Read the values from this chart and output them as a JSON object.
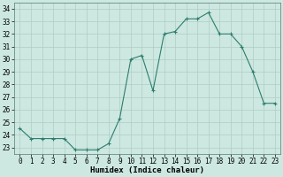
{
  "x": [
    0,
    1,
    2,
    3,
    4,
    5,
    6,
    7,
    8,
    9,
    10,
    11,
    12,
    13,
    14,
    15,
    16,
    17,
    18,
    19,
    20,
    21,
    22,
    23
  ],
  "y": [
    24.5,
    23.7,
    23.7,
    23.7,
    23.7,
    22.8,
    22.8,
    22.8,
    23.3,
    25.3,
    30.0,
    30.3,
    27.5,
    32.0,
    32.2,
    33.2,
    33.2,
    33.7,
    32.0,
    32.0,
    31.0,
    29.0,
    26.5,
    26.5
  ],
  "line_color": "#2e7d6e",
  "marker": "+",
  "marker_color": "#2e7d6e",
  "bg_color": "#cce8e0",
  "grid_color": "#b0ccc4",
  "xlabel": "Humidex (Indice chaleur)",
  "ylim": [
    22.5,
    34.5
  ],
  "xlim": [
    -0.5,
    23.5
  ],
  "yticks": [
    23,
    24,
    25,
    26,
    27,
    28,
    29,
    30,
    31,
    32,
    33,
    34
  ],
  "xticks": [
    0,
    1,
    2,
    3,
    4,
    5,
    6,
    7,
    8,
    9,
    10,
    11,
    12,
    13,
    14,
    15,
    16,
    17,
    18,
    19,
    20,
    21,
    22,
    23
  ],
  "label_fontsize": 6.5,
  "tick_fontsize": 5.5,
  "line_width": 0.8,
  "marker_size": 3,
  "marker_edge_width": 0.8
}
